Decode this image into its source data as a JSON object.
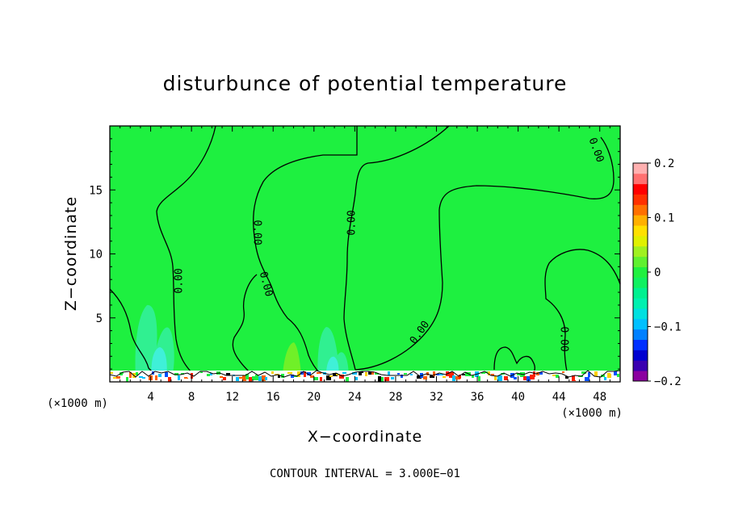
{
  "chart_data": {
    "type": "heatmap",
    "title": "disturbunce of potential temperature",
    "xlabel": "X−coordinate",
    "ylabel": "Z−coordinate",
    "x_unit": "(×1000 m)",
    "y_unit": "(×1000 m)",
    "xlim": [
      0,
      50
    ],
    "ylim": [
      0,
      20
    ],
    "x_ticks": [
      4,
      8,
      12,
      16,
      20,
      24,
      28,
      32,
      36,
      40,
      44,
      48
    ],
    "y_ticks": [
      5,
      10,
      15
    ],
    "footer": "CONTOUR INTERVAL = 3.000E−01",
    "colorbar": {
      "ticks": [
        {
          "value": 0.2,
          "label": "0.2"
        },
        {
          "value": 0.1,
          "label": "0.1"
        },
        {
          "value": 0,
          "label": "0"
        },
        {
          "value": -0.1,
          "label": "−0.1"
        },
        {
          "value": -0.2,
          "label": "−0.2"
        }
      ],
      "range": [
        -0.2,
        0.2
      ],
      "colors": [
        "#8b00a0",
        "#3a00b0",
        "#0000d0",
        "#0030ff",
        "#0080ff",
        "#00c0ff",
        "#00e0e0",
        "#00f0b0",
        "#00f090",
        "#10f060",
        "#20f040",
        "#60f030",
        "#a0f020",
        "#e0f000",
        "#ffe000",
        "#ffb000",
        "#ff7000",
        "#ff3000",
        "#ff0000",
        "#ff7070",
        "#ffb0b0"
      ]
    },
    "field": {
      "background_value": 0,
      "contour_level_label": "0.00"
    }
  }
}
